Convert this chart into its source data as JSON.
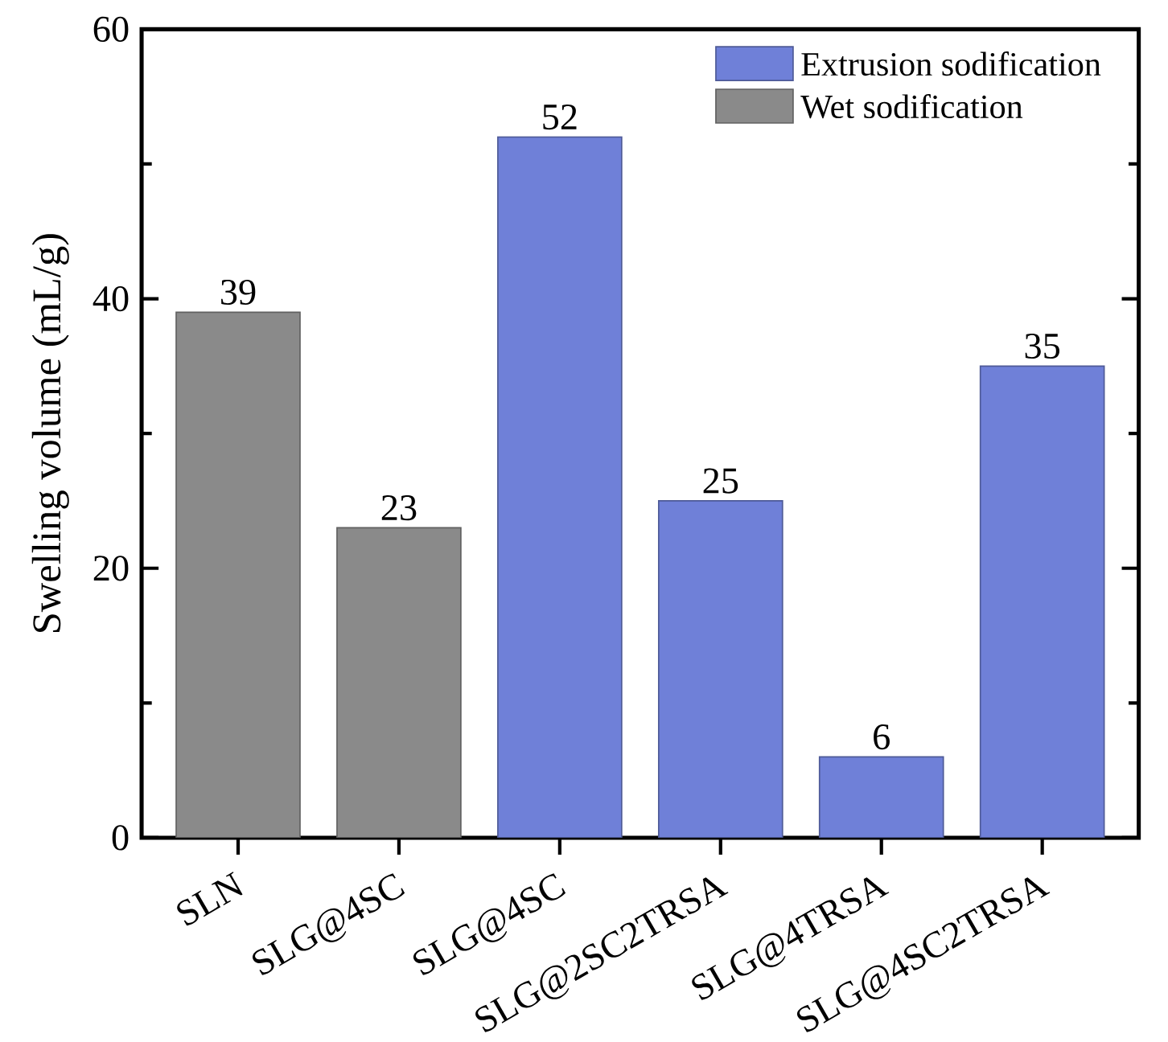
{
  "chart_data": {
    "type": "bar",
    "ylabel": "Swelling volume (mL/g)",
    "categories": [
      "SLN",
      "SLG@4SC",
      "SLG@4SC",
      "SLG@2SC2TRSA",
      "SLG@4TRSA",
      "SLG@4SC2TRSA"
    ],
    "series": [
      {
        "name": "Extrusion sodification",
        "color": "#6f80d8",
        "values": [
          null,
          null,
          52,
          25,
          6,
          35
        ]
      },
      {
        "name": "Wet sodification",
        "color": "#8a8a8a",
        "values": [
          39,
          23,
          null,
          null,
          null,
          null
        ]
      }
    ],
    "ylim": [
      0,
      60
    ],
    "yticks": [
      0,
      20,
      40,
      60
    ],
    "data_labels": true,
    "legend": "top right"
  }
}
